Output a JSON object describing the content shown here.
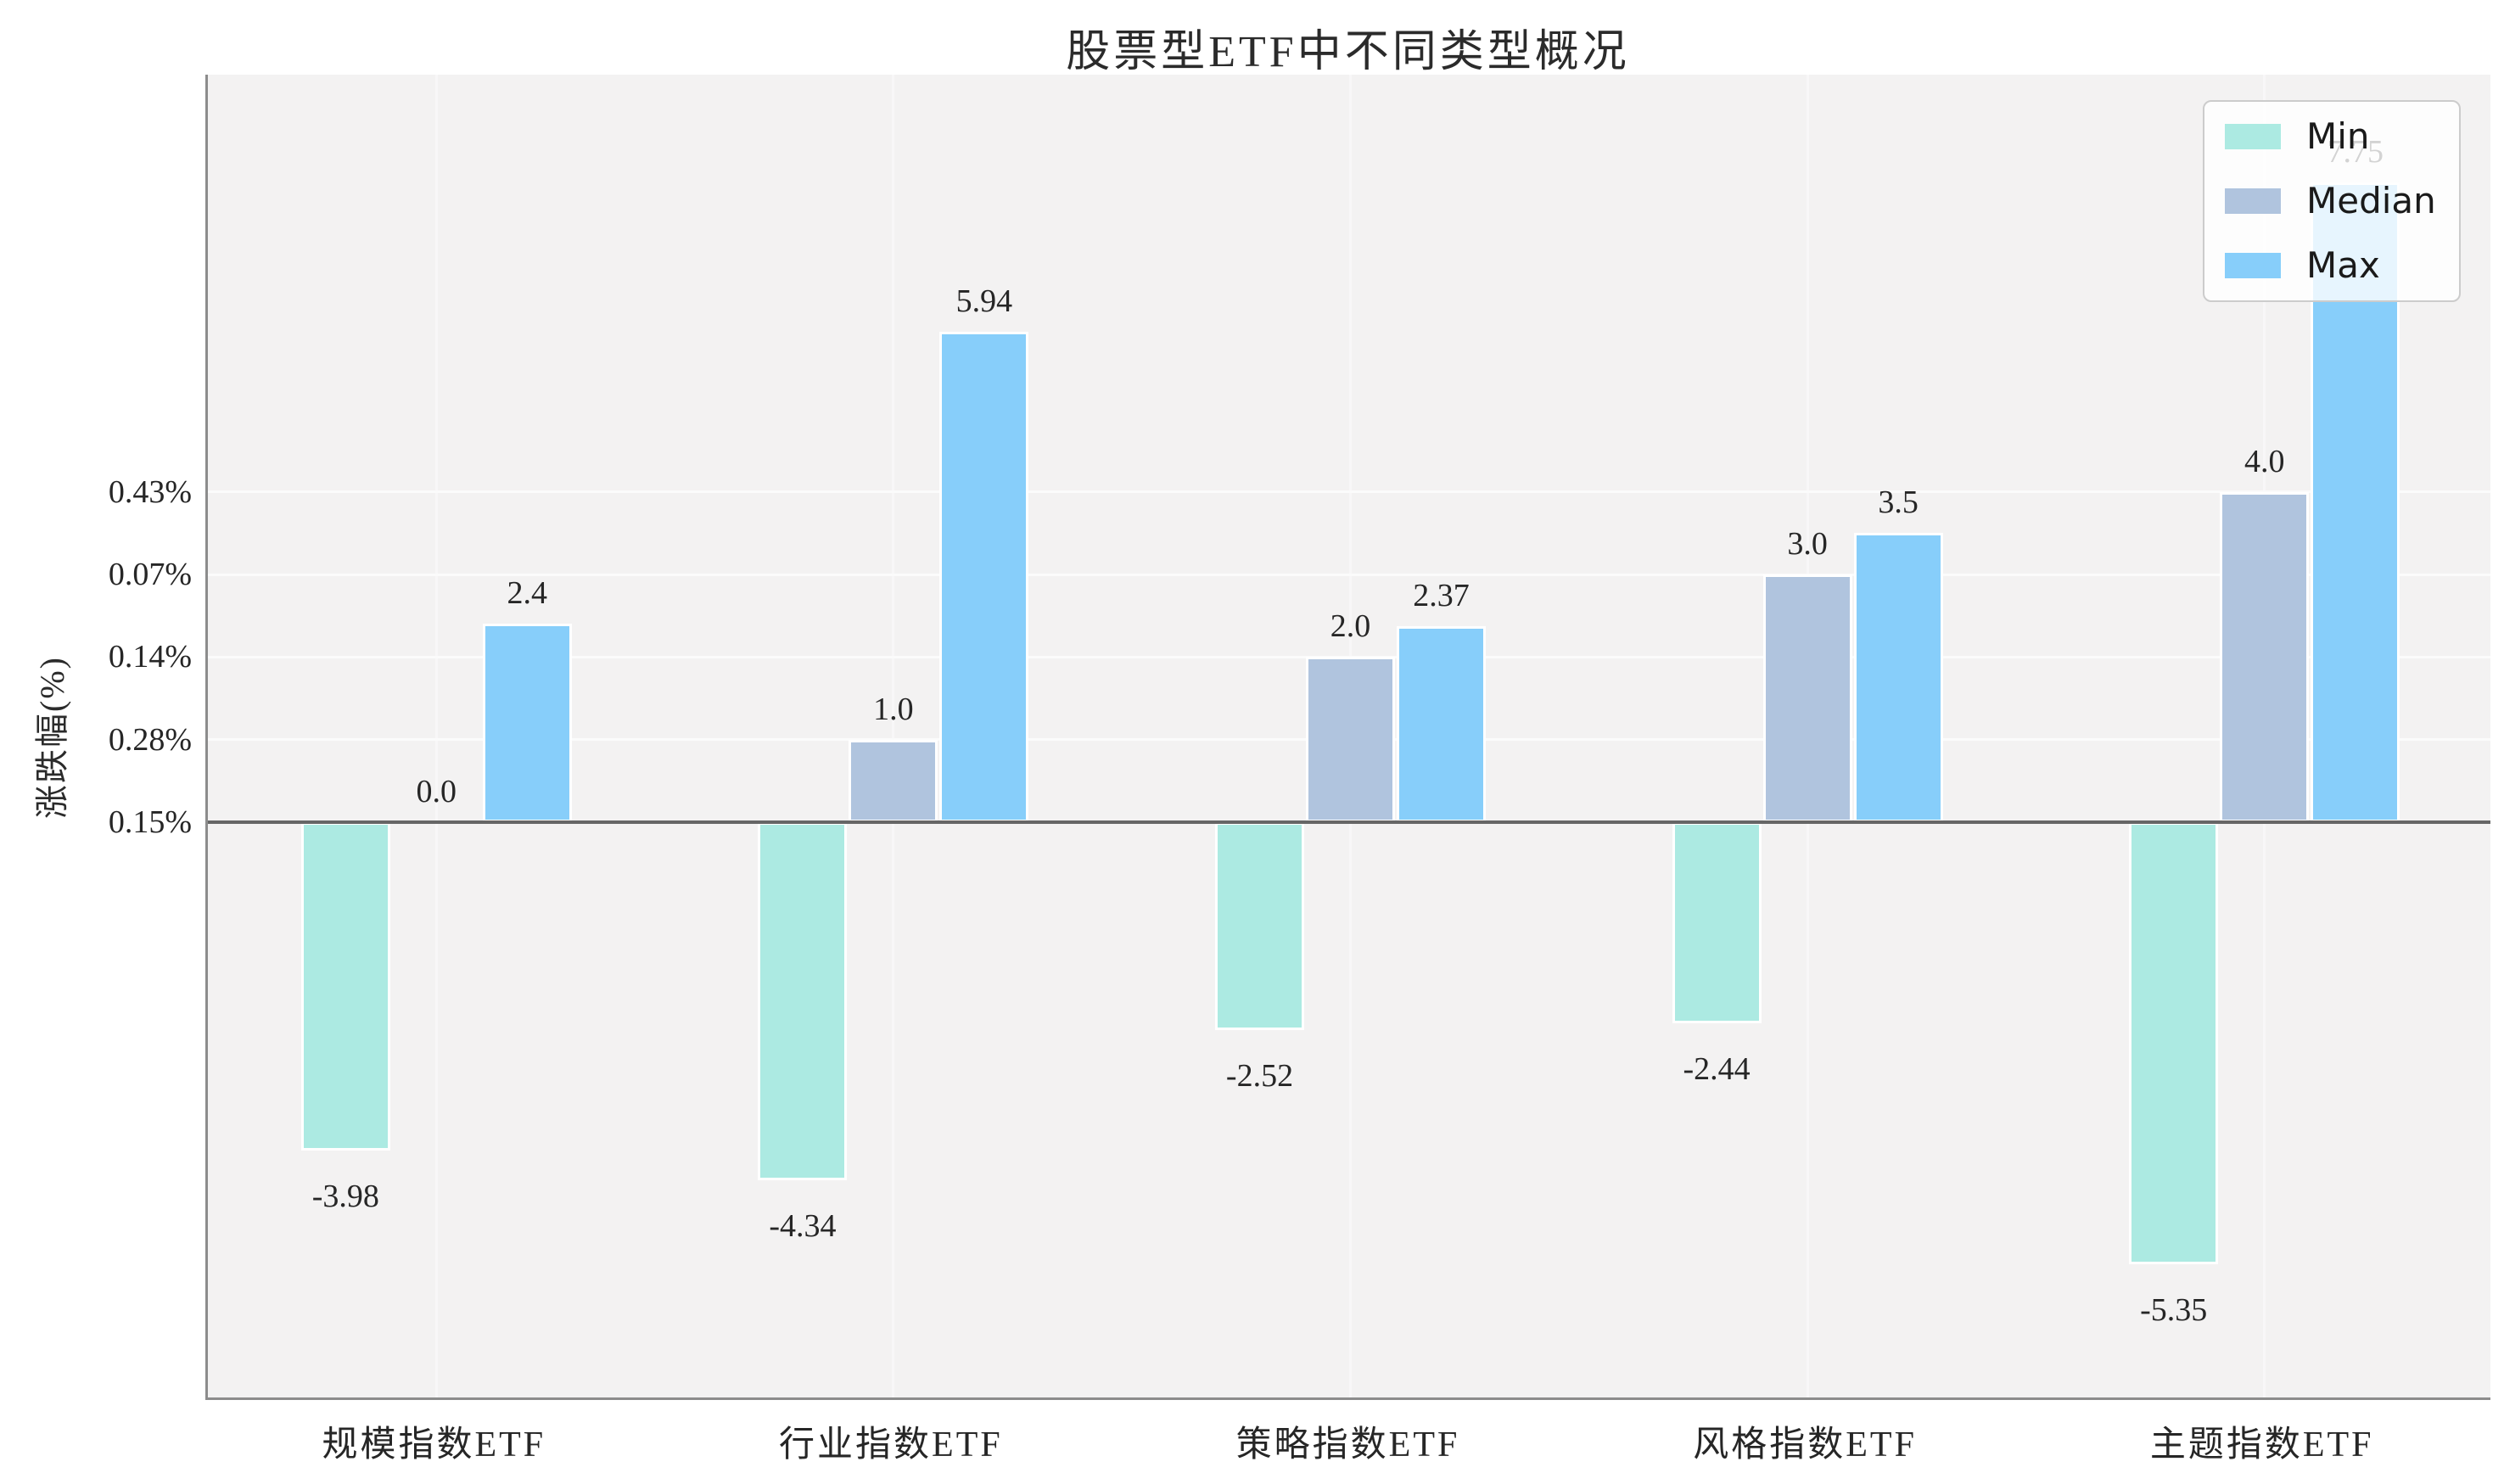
{
  "chart_data": {
    "type": "bar",
    "title": "股票型ETF中不同类型概况",
    "ylabel": "涨跌幅(%)",
    "categories": [
      "规模指数ETF",
      "行业指数ETF",
      "策略指数ETF",
      "风格指数ETF",
      "主题指数ETF"
    ],
    "series": [
      {
        "name": "Min",
        "color": "#ACEAE2",
        "values": [
          -3.98,
          -4.34,
          -2.52,
          -2.44,
          -5.35
        ],
        "labels": [
          "-3.98",
          "-4.34",
          "-2.52",
          "-2.44",
          "-5.35"
        ]
      },
      {
        "name": "Median",
        "color": "#B0C4DE",
        "values": [
          0.0,
          1.0,
          2.0,
          3.0,
          4.0
        ],
        "labels": [
          "0.0",
          "1.0",
          "2.0",
          "3.0",
          "4.0"
        ]
      },
      {
        "name": "Max",
        "color": "#87CEFA",
        "values": [
          2.4,
          5.94,
          2.37,
          3.5,
          7.75
        ],
        "labels": [
          "2.4",
          "5.94",
          "2.37",
          "3.5",
          "7.75"
        ]
      }
    ],
    "yticks": [
      {
        "value": 4,
        "label": "0.43%"
      },
      {
        "value": 3,
        "label": "0.07%"
      },
      {
        "value": 2,
        "label": "0.14%"
      },
      {
        "value": 1,
        "label": "0.28%"
      },
      {
        "value": 0,
        "label": "0.15%"
      }
    ],
    "ylim": [
      -7.0,
      9.06
    ],
    "grid": true,
    "legend": {
      "position": "upper right",
      "entries": [
        "Min",
        "Median",
        "Max"
      ]
    },
    "colors": {
      "plot_bg": "#F3F2F2",
      "grid_h": "#FBFBFB",
      "grid_v": "#F8F7F8",
      "zero_line": "#666666",
      "spine": "#8C8C8C",
      "label_text": "#262626"
    }
  }
}
